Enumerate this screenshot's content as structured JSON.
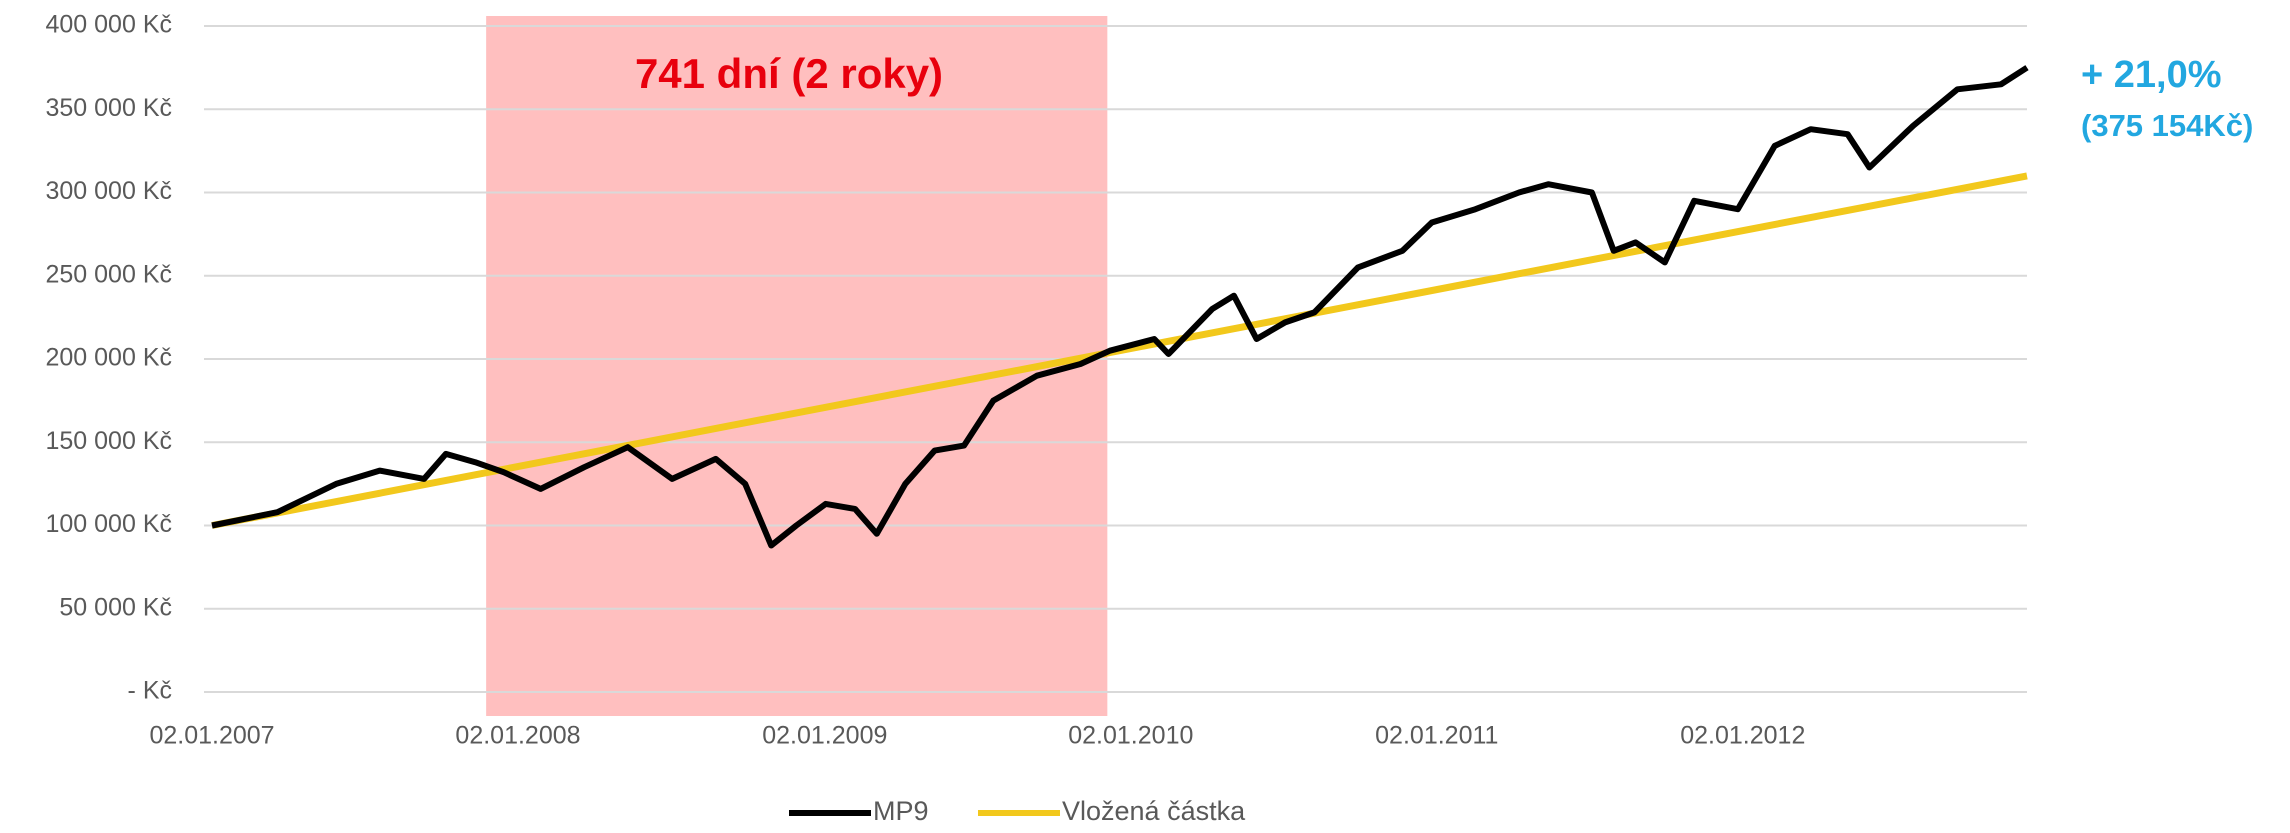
{
  "chart_data": {
    "type": "line",
    "xlim": [
      "02.01.2007",
      "06.12.2012"
    ],
    "xticks": [
      "02.01.2007",
      "02.01.2008",
      "02.01.2009",
      "02.01.2010",
      "02.01.2011",
      "02.01.2012"
    ],
    "ylim": [
      0,
      400000
    ],
    "yticks": [
      {
        "value": 0,
        "label": "-   Kč"
      },
      {
        "value": 50000,
        "label": "50 000 Kč"
      },
      {
        "value": 100000,
        "label": "100 000 Kč"
      },
      {
        "value": 150000,
        "label": "150 000 Kč"
      },
      {
        "value": 200000,
        "label": "200 000 Kč"
      },
      {
        "value": 250000,
        "label": "250 000 Kč"
      },
      {
        "value": 300000,
        "label": "300 000 Kč"
      },
      {
        "value": 350000,
        "label": "350 000 Kč"
      },
      {
        "value": 400000,
        "label": "400 000 Kč"
      }
    ],
    "grid": true,
    "legend": "bottom",
    "highlight": {
      "from": "25.11.2007",
      "to": "05.12.2009",
      "label": "741 dní (2 roky)",
      "color": "#ffbfbf"
    },
    "annotation": {
      "text": "+ 21,0%",
      "subtext": "(375 154Kč)",
      "color": "#22a7e0"
    },
    "series": [
      {
        "name": "MP9",
        "color": "#000000",
        "x": [
          "02.01.2007",
          "21.03.2007",
          "30.05.2007",
          "21.07.2007",
          "12.09.2007",
          "08.10.2007",
          "12.11.2007",
          "16.12.2007",
          "29.01.2008",
          "21.03.2008",
          "12.05.2008",
          "04.07.2008",
          "25.08.2008",
          "29.09.2008",
          "30.10.2008",
          "29.11.2008",
          "03.01.2009",
          "07.02.2009",
          "05.03.2009",
          "08.04.2009",
          "13.05.2009",
          "17.06.2009",
          "22.07.2009",
          "12.09.2009",
          "03.11.2009",
          "08.12.2009",
          "30.01.2010",
          "16.02.2010",
          "09.04.2010",
          "05.05.2010",
          "01.06.2010",
          "05.07.2010",
          "09.08.2010",
          "30.09.2010",
          "22.11.2010",
          "27.12.2010",
          "17.02.2011",
          "10.04.2011",
          "15.05.2011",
          "06.07.2011",
          "01.08.2011",
          "27.08.2011",
          "01.10.2011",
          "05.11.2011",
          "27.12.2011",
          "09.02.2012",
          "23.03.2012",
          "06.05.2012",
          "01.06.2012",
          "23.07.2012",
          "14.09.2012",
          "05.11.2012",
          "06.12.2012"
        ],
        "values": [
          100000,
          108000,
          125000,
          133000,
          128000,
          143000,
          138000,
          132000,
          122000,
          135000,
          147000,
          128000,
          140000,
          125000,
          88000,
          100000,
          113000,
          110000,
          95000,
          125000,
          145000,
          148000,
          175000,
          190000,
          197000,
          205000,
          212000,
          203000,
          230000,
          238000,
          212000,
          222000,
          228000,
          255000,
          265000,
          282000,
          290000,
          300000,
          305000,
          300000,
          265000,
          270000,
          258000,
          295000,
          290000,
          328000,
          338000,
          335000,
          315000,
          340000,
          362000,
          365000,
          375000
        ]
      },
      {
        "name": "Vložená částka",
        "color": "#f2c81c",
        "x": [
          "02.01.2007",
          "06.12.2012"
        ],
        "values": [
          100000,
          310000
        ]
      }
    ]
  }
}
